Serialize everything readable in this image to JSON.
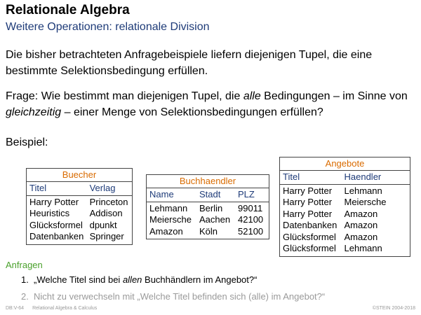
{
  "slide": {
    "title": "Relationale Algebra",
    "subtitle": "Weitere Operationen: relationale Division"
  },
  "body": {
    "para1": "Die bisher betrachteten Anfragebeispiele liefern diejenigen Tupel, die eine bestimmte Selektionsbedingung erfüllen.",
    "para2_a": "Frage: Wie bestimmt man diejenigen Tupel, die ",
    "para2_em1": "alle",
    "para2_b": " Bedingungen – im Sinne von ",
    "para2_em2": "gleichzeitig",
    "para2_c": " – einer Menge von Selektionsbedingungen erfüllen?",
    "example_label": "Beispiel:"
  },
  "tables": {
    "buecher": {
      "caption": "Buecher",
      "headers": [
        "Titel",
        "Verlag"
      ],
      "rows": [
        [
          "Harry Potter",
          "Princeton"
        ],
        [
          "Heuristics",
          "Addison"
        ],
        [
          "Glücksformel",
          "dpunkt"
        ],
        [
          "Datenbanken",
          "Springer"
        ]
      ]
    },
    "buchhaendler": {
      "caption": "Buchhaendler",
      "headers": [
        "Name",
        "Stadt",
        "PLZ"
      ],
      "rows": [
        [
          "Lehmann",
          "Berlin",
          "99011"
        ],
        [
          "Meiersche",
          "Aachen",
          "42100"
        ],
        [
          "Amazon",
          "Köln",
          "52100"
        ]
      ]
    },
    "angebote": {
      "caption": "Angebote",
      "headers": [
        "Titel",
        "Haendler"
      ],
      "rows": [
        [
          "Harry Potter",
          "Lehmann"
        ],
        [
          "Harry Potter",
          "Meiersche"
        ],
        [
          "Harry Potter",
          "Amazon"
        ],
        [
          "Datenbanken",
          "Amazon"
        ],
        [
          "Glücksformel",
          "Amazon"
        ],
        [
          "Glücksformel",
          "Lehmann"
        ]
      ]
    }
  },
  "queries": {
    "heading": "Anfragen",
    "q1_num": "1.",
    "q1_a": "„Welche Titel sind bei ",
    "q1_em": "allen",
    "q1_b": " Buchhändlern im Angebot?“",
    "q2_num": "2.",
    "q2_text": "Nicht zu verwechseln mit „Welche Titel befinden sich (alle) im Angebot?“"
  },
  "footer": {
    "page": "DB:V-64",
    "topic": "Relational Algebra & Calculus",
    "copyright": "©STEIN 2004-2018"
  },
  "colors": {
    "subtitle": "#1e3b78",
    "caption": "#d96b00",
    "heading_green": "#4aa12c"
  }
}
